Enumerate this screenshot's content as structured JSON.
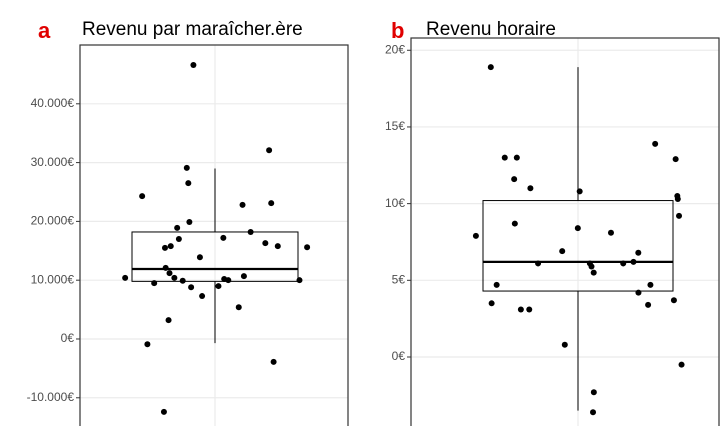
{
  "chart_data": [
    {
      "type": "box",
      "panel_label": "a",
      "title": "Revenu par maraîcher.ère",
      "ylim": [
        -14800,
        50000
      ],
      "yticks": [
        {
          "value": -10000,
          "label": "-10.000€"
        },
        {
          "value": 0,
          "label": "0€"
        },
        {
          "value": 10000,
          "label": "10.000€"
        },
        {
          "value": 20000,
          "label": "20.000€"
        },
        {
          "value": 30000,
          "label": "30.000€"
        },
        {
          "value": 40000,
          "label": "40.000€"
        }
      ],
      "grid": true,
      "color": "#000000",
      "box": {
        "whislo": -700,
        "q1": 9800,
        "med": 11900,
        "q3": 18200,
        "whishi": 29000
      },
      "values": [
        46600,
        29100,
        32100,
        23100,
        22800,
        26500,
        24300,
        15600,
        18200,
        16300,
        18900,
        17000,
        17200,
        19900,
        13900,
        15500,
        15800,
        15800,
        10400,
        10000,
        10400,
        9900,
        12100,
        9500,
        8800,
        10000,
        10200,
        10700,
        11200,
        9000,
        7300,
        5400,
        3200,
        -900,
        -3900,
        -12400
      ]
    },
    {
      "type": "box",
      "panel_label": "b",
      "title": "Revenu horaire",
      "ylim": [
        -4.5,
        20.8
      ],
      "yticks": [
        {
          "value": 0,
          "label": "0€"
        },
        {
          "value": 5,
          "label": "5€"
        },
        {
          "value": 10,
          "label": "10€"
        },
        {
          "value": 15,
          "label": "15€"
        },
        {
          "value": 20,
          "label": "20€"
        }
      ],
      "grid": true,
      "color": "#000000",
      "box": {
        "whislo": -3.5,
        "q1": 4.3,
        "med": 6.2,
        "q3": 10.2,
        "whishi": 18.9
      },
      "values": [
        18.9,
        13.9,
        12.9,
        13.0,
        13.0,
        11.0,
        11.6,
        9.2,
        8.4,
        8.1,
        8.7,
        10.5,
        10.8,
        10.3,
        6.9,
        6.2,
        6.1,
        6.1,
        6.1,
        6.8,
        7.9,
        5.5,
        3.4,
        3.1,
        3.1,
        4.2,
        3.5,
        3.7,
        4.7,
        4.7,
        5.9,
        0.8,
        -0.5,
        -2.3,
        -3.6
      ]
    }
  ]
}
